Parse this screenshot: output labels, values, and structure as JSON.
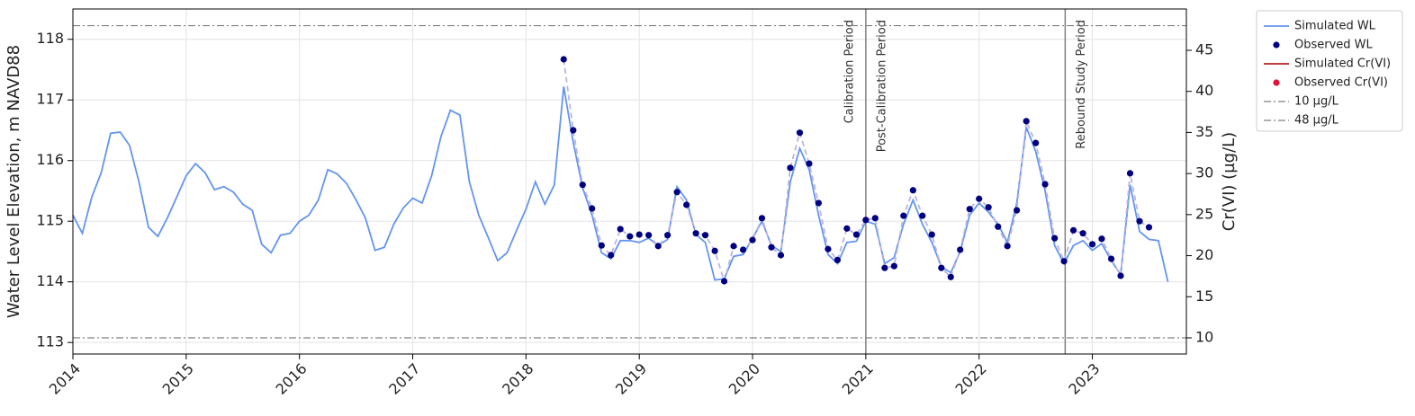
{
  "chart_data": {
    "type": "line",
    "y_label": "Water Level Elevation, m NAVD88",
    "y2_label": "Cr(VI) (µg/L)",
    "xlim": [
      2014,
      2023.83
    ],
    "xticks": [
      2014,
      2015,
      2016,
      2017,
      2018,
      2019,
      2020,
      2021,
      2022,
      2023
    ],
    "ylim": [
      112.81,
      118.5
    ],
    "yticks": [
      113,
      114,
      115,
      116,
      117,
      118
    ],
    "y2lim": [
      8.03,
      50.03
    ],
    "y2ticks": [
      10,
      15,
      20,
      25,
      30,
      35,
      40,
      45
    ],
    "grid": true,
    "legend": "outside right",
    "periods": [
      {
        "x": 2021.0,
        "left_label": "Calibration Period",
        "right_label": "Post-Calibration Period"
      },
      {
        "x": 2022.76,
        "right_label": "Rebound Study Period"
      }
    ],
    "series": [
      {
        "name": "Simulated WL",
        "kind": "line",
        "color": "#6495ed",
        "x": [
          2014,
          2014.083,
          2014.167,
          2014.25,
          2014.333,
          2014.417,
          2014.5,
          2014.583,
          2014.667,
          2014.75,
          2014.833,
          2014.917,
          2015,
          2015.083,
          2015.167,
          2015.25,
          2015.333,
          2015.417,
          2015.5,
          2015.583,
          2015.667,
          2015.75,
          2015.833,
          2015.917,
          2016,
          2016.083,
          2016.167,
          2016.25,
          2016.333,
          2016.417,
          2016.5,
          2016.583,
          2016.667,
          2016.75,
          2016.833,
          2016.917,
          2017,
          2017.083,
          2017.167,
          2017.25,
          2017.333,
          2017.417,
          2017.5,
          2017.583,
          2017.667,
          2017.75,
          2017.833,
          2017.917,
          2018,
          2018.083,
          2018.167,
          2018.25,
          2018.333,
          2018.417,
          2018.5,
          2018.583,
          2018.667,
          2018.75,
          2018.833,
          2018.917,
          2019,
          2019.083,
          2019.167,
          2019.25,
          2019.333,
          2019.417,
          2019.5,
          2019.583,
          2019.667,
          2019.75,
          2019.833,
          2019.917,
          2020,
          2020.083,
          2020.167,
          2020.25,
          2020.333,
          2020.417,
          2020.5,
          2020.583,
          2020.667,
          2020.75,
          2020.833,
          2020.917,
          2021,
          2021.083,
          2021.167,
          2021.25,
          2021.333,
          2021.417,
          2021.5,
          2021.583,
          2021.667,
          2021.75,
          2021.833,
          2021.917,
          2022,
          2022.083,
          2022.167,
          2022.25,
          2022.333,
          2022.417,
          2022.5,
          2022.583,
          2022.667,
          2022.75,
          2022.833,
          2022.917,
          2023,
          2023.083,
          2023.167,
          2023.25,
          2023.333,
          2023.417,
          2023.5,
          2023.583,
          2023.667
        ],
        "values": [
          115.1,
          114.8,
          115.4,
          115.8,
          116.45,
          116.47,
          116.25,
          115.65,
          114.9,
          114.75,
          115.05,
          115.4,
          115.75,
          115.95,
          115.8,
          115.52,
          115.57,
          115.48,
          115.28,
          115.18,
          114.62,
          114.48,
          114.77,
          114.8,
          115.0,
          115.1,
          115.35,
          115.85,
          115.78,
          115.62,
          115.35,
          115.05,
          114.52,
          114.57,
          114.95,
          115.22,
          115.38,
          115.3,
          115.75,
          116.4,
          116.83,
          116.75,
          115.65,
          115.1,
          114.73,
          114.35,
          114.48,
          114.85,
          115.2,
          115.65,
          115.28,
          115.6,
          117.22,
          116.3,
          115.55,
          115.1,
          114.48,
          114.38,
          114.68,
          114.68,
          114.65,
          114.72,
          114.6,
          114.7,
          115.57,
          115.35,
          114.78,
          114.65,
          114.03,
          114.05,
          114.42,
          114.45,
          114.72,
          115.0,
          114.6,
          114.5,
          115.65,
          116.2,
          115.85,
          115.1,
          114.45,
          114.3,
          114.65,
          114.67,
          115.0,
          114.95,
          114.3,
          114.4,
          114.95,
          115.35,
          114.95,
          114.65,
          114.25,
          114.15,
          114.5,
          115.1,
          115.3,
          115.15,
          114.95,
          114.65,
          115.3,
          116.55,
          116.15,
          115.5,
          114.6,
          114.3,
          114.6,
          114.68,
          114.52,
          114.63,
          114.35,
          114.12,
          115.6,
          114.83,
          114.7,
          114.68,
          114.0
        ]
      },
      {
        "name": "Observed WL",
        "kind": "scatter",
        "color": "#000080",
        "connector_color": "#bdb4e0",
        "x": [
          2018.333,
          2018.417,
          2018.5,
          2018.583,
          2018.667,
          2018.75,
          2018.833,
          2018.917,
          2019,
          2019.083,
          2019.167,
          2019.25,
          2019.333,
          2019.417,
          2019.5,
          2019.583,
          2019.667,
          2019.75,
          2019.833,
          2019.917,
          2020,
          2020.083,
          2020.167,
          2020.25,
          2020.333,
          2020.417,
          2020.5,
          2020.583,
          2020.667,
          2020.75,
          2020.833,
          2020.917,
          2021,
          2021.083,
          2021.167,
          2021.25,
          2021.333,
          2021.417,
          2021.5,
          2021.583,
          2021.667,
          2021.75,
          2021.833,
          2021.917,
          2022,
          2022.083,
          2022.167,
          2022.25,
          2022.333,
          2022.417,
          2022.5,
          2022.583,
          2022.667,
          2022.75,
          2022.833,
          2022.917,
          2023,
          2023.083,
          2023.167,
          2023.25,
          2023.333,
          2023.417,
          2023.5
        ],
        "values": [
          117.67,
          116.5,
          115.6,
          115.21,
          114.6,
          114.44,
          114.87,
          114.75,
          114.78,
          114.77,
          114.59,
          114.77,
          115.48,
          115.27,
          114.8,
          114.77,
          114.51,
          114.01,
          114.59,
          114.53,
          114.69,
          115.05,
          114.57,
          114.44,
          115.88,
          116.46,
          115.95,
          115.3,
          114.54,
          114.36,
          114.88,
          114.78,
          115.02,
          115.05,
          114.23,
          114.26,
          115.09,
          115.51,
          115.09,
          114.78,
          114.23,
          114.08,
          114.53,
          115.2,
          115.37,
          115.23,
          114.91,
          114.59,
          115.18,
          116.65,
          116.29,
          115.61,
          114.72,
          114.34,
          114.85,
          114.8,
          114.62,
          114.71,
          114.38,
          114.1,
          115.79,
          115.0,
          114.9
        ]
      },
      {
        "name": "Simulated Cr(VI)",
        "kind": "line",
        "axis": "y2",
        "color": "#b22222",
        "x": [],
        "values": []
      },
      {
        "name": "Observed Cr(VI)",
        "kind": "scatter",
        "axis": "y2",
        "color": "#dc143c",
        "x": [],
        "values": []
      },
      {
        "name": "10 µg/L",
        "kind": "hline",
        "axis": "y2",
        "color": "#808080",
        "value": 10
      },
      {
        "name": "48 µg/L",
        "kind": "hline",
        "axis": "y2",
        "color": "#808080",
        "value": 48
      }
    ]
  }
}
